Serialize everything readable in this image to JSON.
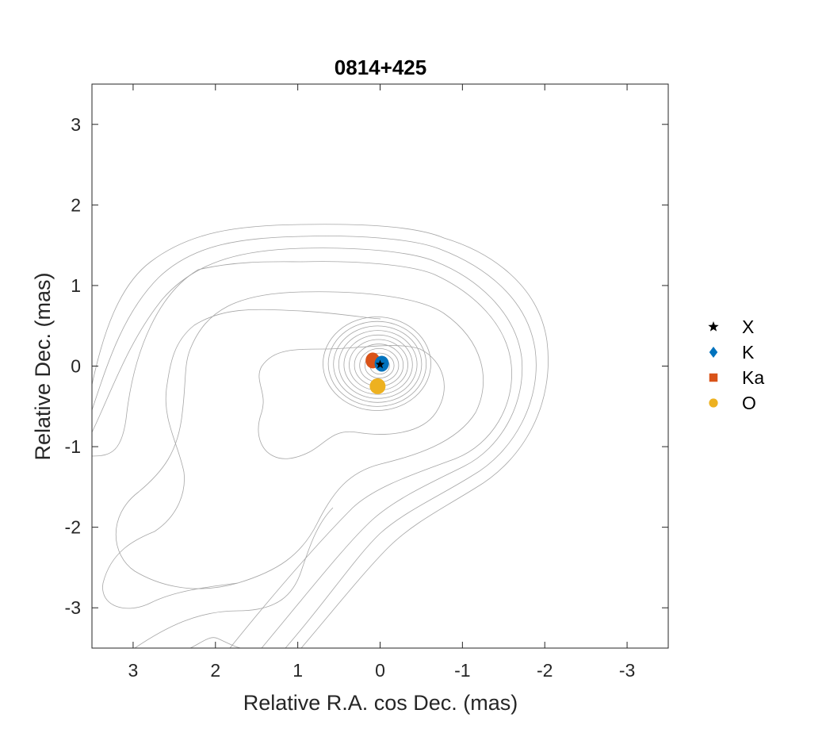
{
  "chart_data": {
    "type": "scatter",
    "title": "0814+425",
    "xlabel": "Relative R.A. cos Dec. (mas)",
    "ylabel": "Relative Dec. (mas)",
    "xlim": [
      3.5,
      -3.5
    ],
    "ylim": [
      -3.5,
      3.5
    ],
    "x_reversed": true,
    "xticks": [
      3,
      2,
      1,
      0,
      -1,
      -2,
      -3
    ],
    "yticks": [
      -3,
      -2,
      -1,
      0,
      1,
      2,
      3
    ],
    "grid": false,
    "legend_position": "right",
    "series": [
      {
        "name": "X",
        "marker": "star",
        "color": "#000000",
        "x": 0.0,
        "y": 0.02
      },
      {
        "name": "K",
        "marker": "diamond",
        "color": "#0072bd",
        "x": -0.02,
        "y": 0.03
      },
      {
        "name": "Ka",
        "marker": "square",
        "color": "#d95319",
        "x": 0.09,
        "y": 0.07
      },
      {
        "name": "O",
        "marker": "circle",
        "color": "#edb120",
        "x": 0.03,
        "y": -0.25
      }
    ]
  }
}
